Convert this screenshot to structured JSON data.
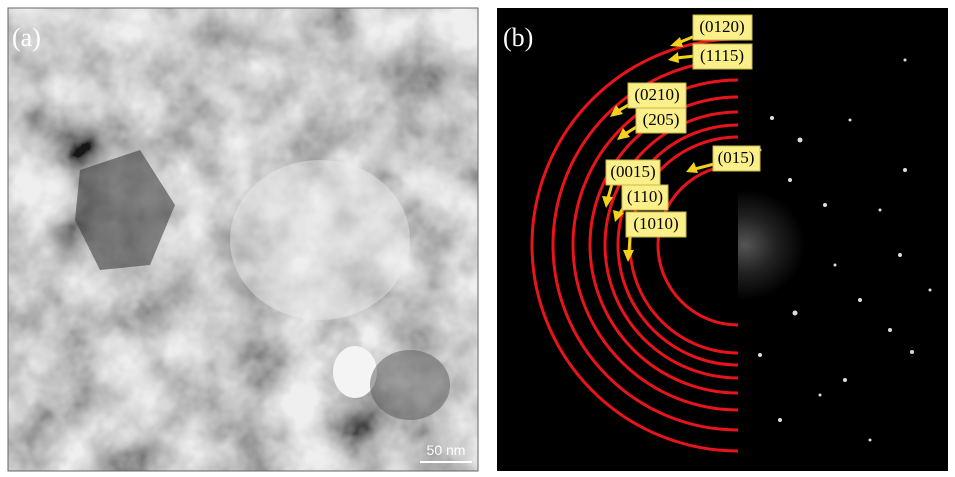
{
  "panels": [
    {
      "label": "(a)",
      "scale_bar": "50 nm"
    },
    {
      "label": "(b)",
      "ring_labels": [
        "(0120)",
        "(1115)",
        "(0210)",
        "(205)",
        "(015)",
        "(0015)",
        "(110)",
        "(1010)"
      ]
    }
  ]
}
